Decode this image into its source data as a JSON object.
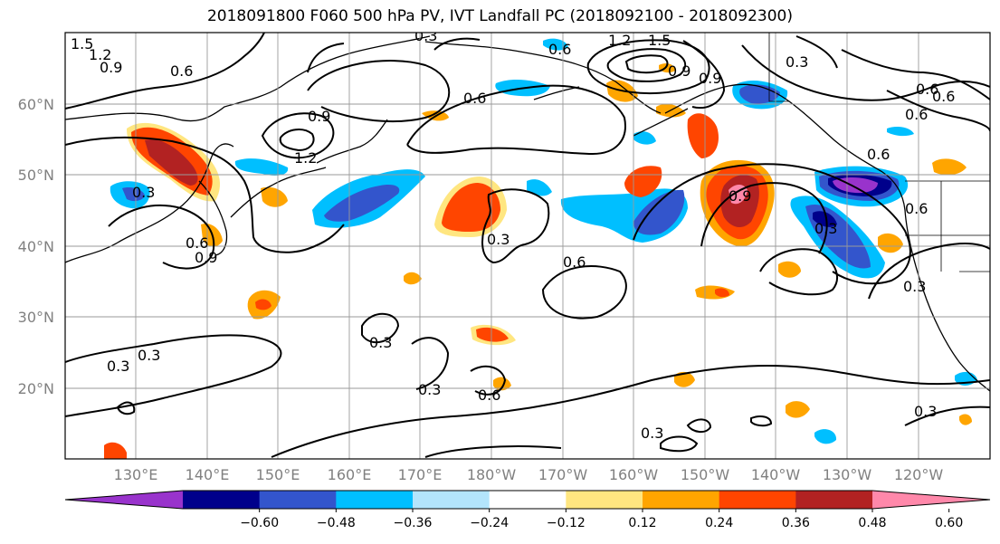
{
  "title": "2018091800 F060 500 hPa PV, IVT Landfall PC (2018092100 - 2018092300)",
  "lat_labels": [
    "60°N",
    "50°N",
    "40°N",
    "30°N",
    "20°N"
  ],
  "lon_labels": [
    "130°E",
    "140°E",
    "150°E",
    "160°E",
    "170°E",
    "180°W",
    "170°W",
    "160°W",
    "150°W",
    "140°W",
    "130°W",
    "120°W"
  ],
  "colorbar": {
    "ticks": [
      "−0.60",
      "−0.48",
      "−0.36",
      "−0.24",
      "−0.12",
      "0.12",
      "0.24",
      "0.36",
      "0.48",
      "0.60"
    ],
    "colors": [
      "#9933CC",
      "#00008B",
      "#3355CC",
      "#00BFFF",
      "#B3E5FC",
      "#FFFFFF",
      "#FFE680",
      "#FFA500",
      "#FF4500",
      "#B22222",
      "#FF88AA"
    ]
  },
  "contour_labels": [
    "1.5",
    "1.2",
    "0.9",
    "0.6",
    "0.3",
    "0.9",
    "1.2",
    "0.6",
    "0.9",
    "0.3",
    "0.6",
    "0.3",
    "0.3",
    "0.6",
    "0.3",
    "0.3",
    "0.6",
    "0.3",
    "0.3",
    "0.6",
    "0.9",
    "0.6",
    "0.6",
    "0.3",
    "0.3",
    "1.5",
    "1.2",
    "0.9",
    "0.6",
    "0.6",
    "0.9",
    "0.3",
    "0.3",
    "0.6"
  ]
}
